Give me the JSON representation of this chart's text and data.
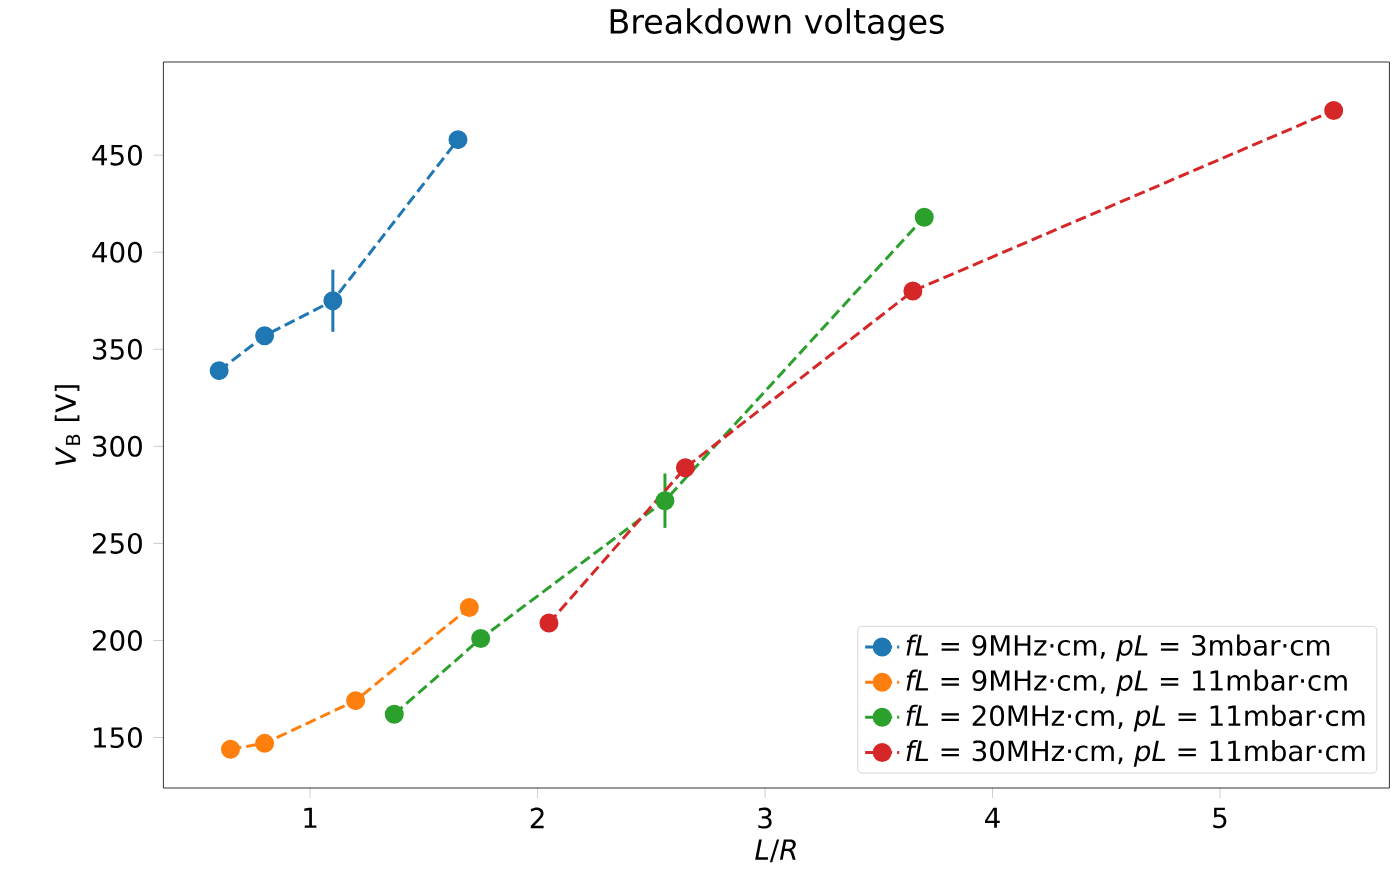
{
  "chart_data": {
    "type": "line",
    "title": "Breakdown voltages",
    "xlabel": "*L*/*R*",
    "ylabel": "*V*$_{B}$ [V]",
    "xlim": [
      0.355,
      5.745
    ],
    "ylim": [
      124,
      498
    ],
    "xticks": [
      1,
      2,
      3,
      4,
      5
    ],
    "yticks": [
      150,
      200,
      250,
      300,
      350,
      400,
      450
    ],
    "marker": "circle",
    "line_style": "dashed",
    "legend": "bottom right",
    "series": [
      {
        "name": "*fL* = 9MHz·cm, *pL* = 3mbar·cm",
        "color": "#1f77b4",
        "x": [
          0.6,
          0.8,
          1.1,
          1.65
        ],
        "values": [
          339,
          357,
          375,
          458
        ],
        "errors": [
          null,
          null,
          16,
          null
        ]
      },
      {
        "name": "*fL* = 9MHz·cm, *pL* = 11mbar·cm",
        "color": "#ff7f0e",
        "x": [
          0.65,
          0.8,
          1.2,
          1.7
        ],
        "values": [
          144,
          147,
          169,
          217
        ],
        "errors": [
          null,
          null,
          null,
          null
        ]
      },
      {
        "name": "*fL* = 20MHz·cm, *pL* = 11mbar·cm",
        "color": "#2ca02c",
        "x": [
          1.37,
          1.75,
          2.56,
          3.7
        ],
        "values": [
          162,
          201,
          272,
          418
        ],
        "errors": [
          null,
          null,
          14,
          null
        ]
      },
      {
        "name": "*fL* = 30MHz·cm, *pL* = 11mbar·cm",
        "color": "#d62728",
        "x": [
          2.05,
          2.65,
          3.65,
          5.5
        ],
        "values": [
          209,
          289,
          380,
          473
        ],
        "errors": [
          null,
          null,
          null,
          null
        ]
      }
    ]
  }
}
